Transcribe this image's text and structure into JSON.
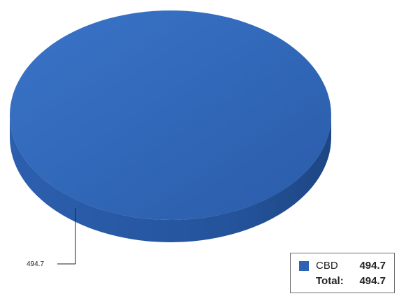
{
  "chart_data": {
    "type": "pie",
    "categories": [
      "CBD"
    ],
    "values": [
      494.7
    ],
    "data_labels": [
      "494.7"
    ],
    "legend_placement": "bottom-right",
    "total_label": "Total:",
    "total_value": "494.7",
    "colors": {
      "CBD": "#2f64b5",
      "CBD_side": "#25539a"
    },
    "title": "",
    "xlabel": "",
    "ylabel": ""
  }
}
